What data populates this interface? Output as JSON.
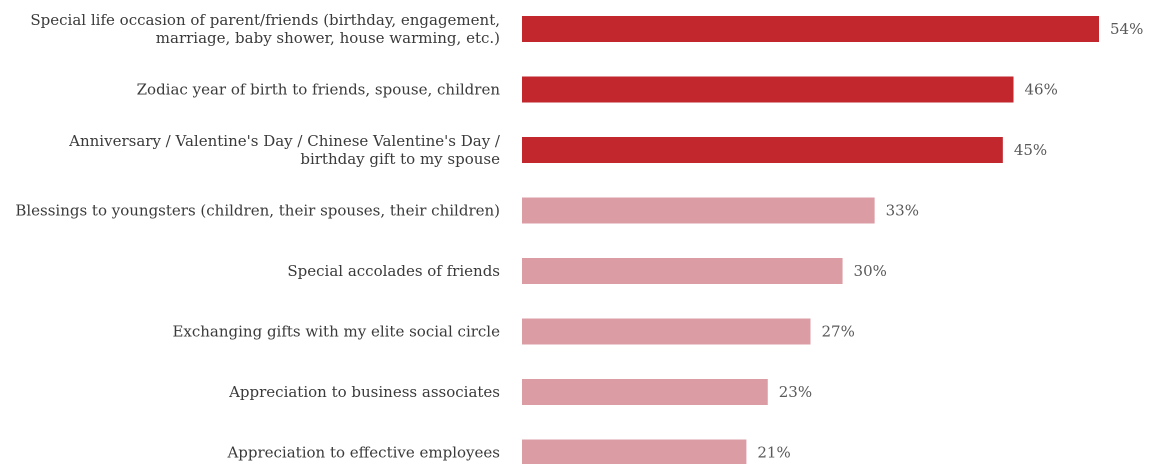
{
  "chart_data": {
    "type": "bar",
    "orientation": "horizontal",
    "categories": [
      [
        "Special life occasion of parent/friends (birthday, engagement,",
        "marriage, baby shower, house warming, etc.)"
      ],
      [
        "Zodiac year of birth to friends, spouse, children"
      ],
      [
        "Anniversary / Valentine's Day / Chinese Valentine's Day /",
        "birthday gift to my spouse"
      ],
      [
        "Blessings to youngsters (children, their spouses, their children)"
      ],
      [
        "Special accolades of friends"
      ],
      [
        "Exchanging gifts with my elite social circle"
      ],
      [
        "Appreciation to business associates"
      ],
      [
        "Appreciation to effective employees"
      ]
    ],
    "values": [
      54,
      46,
      45,
      33,
      30,
      27,
      23,
      21
    ],
    "value_labels": [
      "54%",
      "46%",
      "45%",
      "33%",
      "30%",
      "27%",
      "23%",
      "21%"
    ],
    "highlight": [
      true,
      true,
      true,
      false,
      false,
      false,
      false,
      false
    ],
    "colors": {
      "highlight": "#c1272d",
      "normal": "#db9ca4"
    },
    "xlim": [
      0,
      54
    ],
    "grid": false,
    "legend": "none"
  }
}
